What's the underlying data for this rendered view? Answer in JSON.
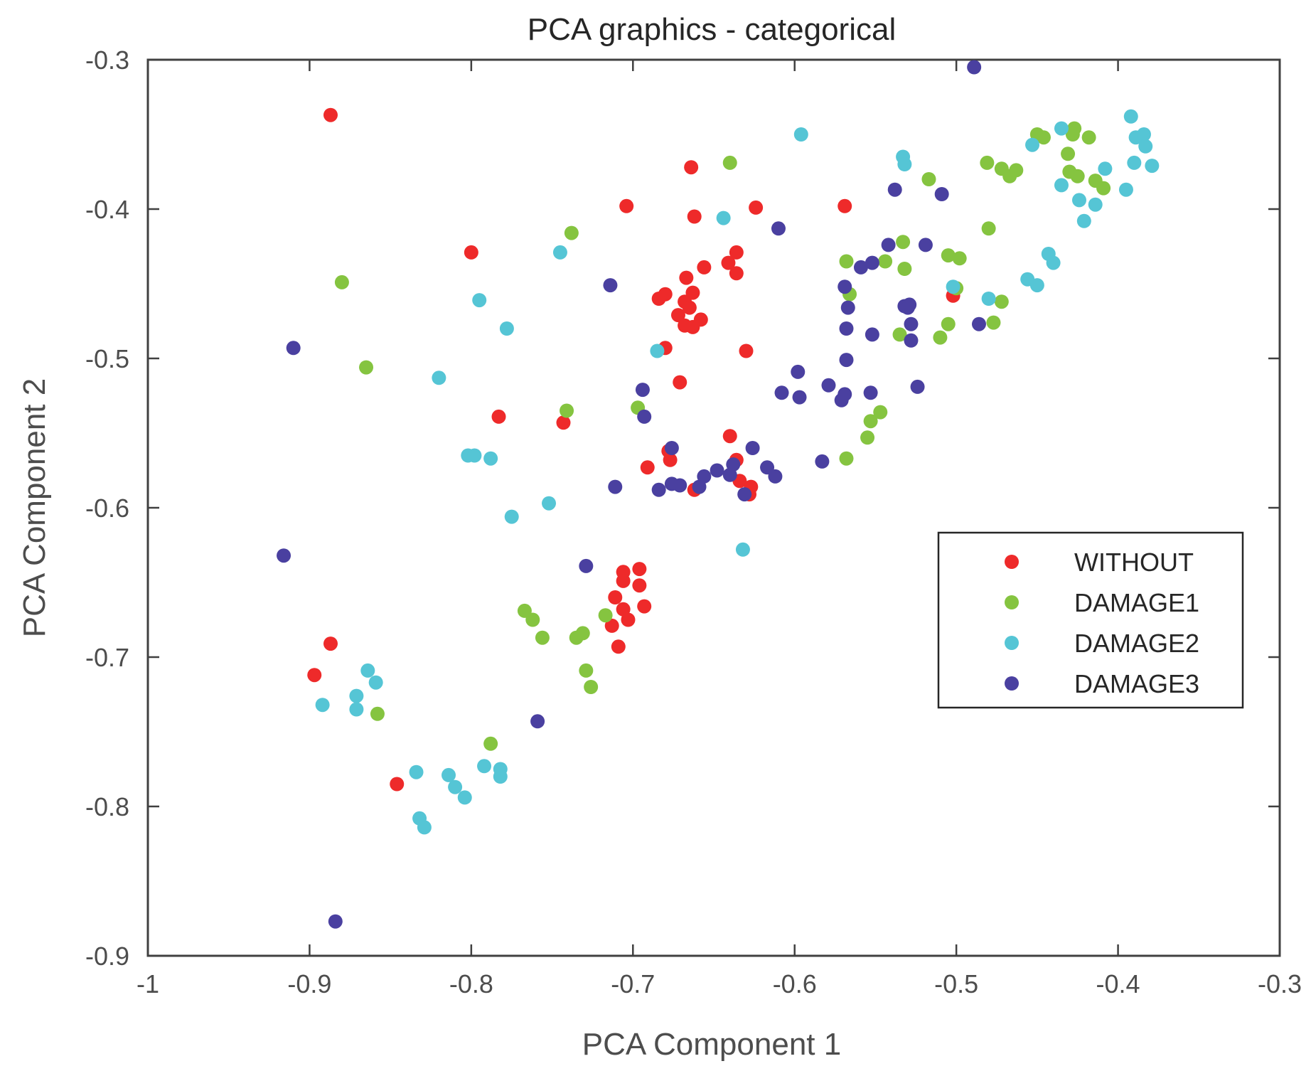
{
  "chart_data": {
    "type": "scatter",
    "title": "PCA graphics - categorical",
    "xlabel": "PCA Component 1",
    "ylabel": "PCA Component 2",
    "xlim": [
      -1,
      -0.3
    ],
    "ylim": [
      -0.9,
      -0.3
    ],
    "xticks": [
      -1,
      -0.9,
      -0.8,
      -0.7,
      -0.6,
      -0.5,
      -0.4,
      -0.3
    ],
    "xtick_labels": [
      "-1",
      "-0.9",
      "-0.8",
      "-0.7",
      "-0.6",
      "-0.5",
      "-0.4",
      "-0.3"
    ],
    "yticks": [
      -0.3,
      -0.4,
      -0.5,
      -0.6,
      -0.7,
      -0.8,
      -0.9
    ],
    "ytick_labels": [
      "-0.3",
      "-0.4",
      "-0.5",
      "-0.6",
      "-0.7",
      "-0.8",
      "-0.9"
    ],
    "grid": false,
    "legend_position": "right",
    "series": [
      {
        "name": "WITHOUT",
        "color": "#ee2a2a",
        "points": [
          [
            -0.887,
            -0.337
          ],
          [
            -0.664,
            -0.372
          ],
          [
            -0.704,
            -0.398
          ],
          [
            -0.662,
            -0.405
          ],
          [
            -0.624,
            -0.399
          ],
          [
            -0.569,
            -0.398
          ],
          [
            -0.8,
            -0.429
          ],
          [
            -0.636,
            -0.429
          ],
          [
            -0.641,
            -0.436
          ],
          [
            -0.656,
            -0.439
          ],
          [
            -0.636,
            -0.443
          ],
          [
            -0.667,
            -0.446
          ],
          [
            -0.663,
            -0.456
          ],
          [
            -0.68,
            -0.457
          ],
          [
            -0.684,
            -0.46
          ],
          [
            -0.668,
            -0.462
          ],
          [
            -0.665,
            -0.466
          ],
          [
            -0.672,
            -0.471
          ],
          [
            -0.658,
            -0.474
          ],
          [
            -0.668,
            -0.478
          ],
          [
            -0.663,
            -0.479
          ],
          [
            -0.68,
            -0.493
          ],
          [
            -0.63,
            -0.495
          ],
          [
            -0.671,
            -0.516
          ],
          [
            -0.783,
            -0.539
          ],
          [
            -0.743,
            -0.543
          ],
          [
            -0.64,
            -0.552
          ],
          [
            -0.678,
            -0.562
          ],
          [
            -0.677,
            -0.568
          ],
          [
            -0.691,
            -0.573
          ],
          [
            -0.636,
            -0.568
          ],
          [
            -0.634,
            -0.582
          ],
          [
            -0.627,
            -0.586
          ],
          [
            -0.662,
            -0.588
          ],
          [
            -0.628,
            -0.591
          ],
          [
            -0.696,
            -0.641
          ],
          [
            -0.706,
            -0.643
          ],
          [
            -0.706,
            -0.649
          ],
          [
            -0.696,
            -0.652
          ],
          [
            -0.711,
            -0.66
          ],
          [
            -0.706,
            -0.668
          ],
          [
            -0.693,
            -0.666
          ],
          [
            -0.703,
            -0.675
          ],
          [
            -0.713,
            -0.679
          ],
          [
            -0.709,
            -0.693
          ],
          [
            -0.887,
            -0.691
          ],
          [
            -0.897,
            -0.712
          ],
          [
            -0.846,
            -0.785
          ],
          [
            -0.502,
            -0.458
          ]
        ]
      },
      {
        "name": "DAMAGE1",
        "color": "#85c440",
        "points": [
          [
            -0.64,
            -0.369
          ],
          [
            -0.738,
            -0.416
          ],
          [
            -0.88,
            -0.449
          ],
          [
            -0.865,
            -0.506
          ],
          [
            -0.741,
            -0.535
          ],
          [
            -0.697,
            -0.533
          ],
          [
            -0.767,
            -0.669
          ],
          [
            -0.762,
            -0.675
          ],
          [
            -0.756,
            -0.687
          ],
          [
            -0.735,
            -0.687
          ],
          [
            -0.731,
            -0.684
          ],
          [
            -0.717,
            -0.672
          ],
          [
            -0.729,
            -0.709
          ],
          [
            -0.726,
            -0.72
          ],
          [
            -0.858,
            -0.738
          ],
          [
            -0.788,
            -0.758
          ],
          [
            -0.568,
            -0.435
          ],
          [
            -0.566,
            -0.457
          ],
          [
            -0.533,
            -0.422
          ],
          [
            -0.532,
            -0.44
          ],
          [
            -0.544,
            -0.435
          ],
          [
            -0.535,
            -0.484
          ],
          [
            -0.517,
            -0.38
          ],
          [
            -0.505,
            -0.431
          ],
          [
            -0.498,
            -0.433
          ],
          [
            -0.5,
            -0.453
          ],
          [
            -0.505,
            -0.477
          ],
          [
            -0.51,
            -0.486
          ],
          [
            -0.547,
            -0.536
          ],
          [
            -0.553,
            -0.542
          ],
          [
            -0.555,
            -0.553
          ],
          [
            -0.568,
            -0.567
          ],
          [
            -0.481,
            -0.369
          ],
          [
            -0.48,
            -0.413
          ],
          [
            -0.472,
            -0.373
          ],
          [
            -0.467,
            -0.378
          ],
          [
            -0.463,
            -0.374
          ],
          [
            -0.45,
            -0.35
          ],
          [
            -0.446,
            -0.352
          ],
          [
            -0.427,
            -0.346
          ],
          [
            -0.428,
            -0.35
          ],
          [
            -0.431,
            -0.363
          ],
          [
            -0.43,
            -0.375
          ],
          [
            -0.425,
            -0.378
          ],
          [
            -0.418,
            -0.352
          ],
          [
            -0.414,
            -0.381
          ],
          [
            -0.409,
            -0.386
          ],
          [
            -0.472,
            -0.462
          ],
          [
            -0.477,
            -0.476
          ]
        ]
      },
      {
        "name": "DAMAGE2",
        "color": "#55c5d5",
        "points": [
          [
            -0.596,
            -0.35
          ],
          [
            -0.644,
            -0.406
          ],
          [
            -0.745,
            -0.429
          ],
          [
            -0.795,
            -0.461
          ],
          [
            -0.778,
            -0.48
          ],
          [
            -0.685,
            -0.495
          ],
          [
            -0.82,
            -0.513
          ],
          [
            -0.802,
            -0.565
          ],
          [
            -0.798,
            -0.565
          ],
          [
            -0.788,
            -0.567
          ],
          [
            -0.752,
            -0.597
          ],
          [
            -0.775,
            -0.606
          ],
          [
            -0.632,
            -0.628
          ],
          [
            -0.864,
            -0.709
          ],
          [
            -0.859,
            -0.717
          ],
          [
            -0.871,
            -0.726
          ],
          [
            -0.871,
            -0.735
          ],
          [
            -0.892,
            -0.732
          ],
          [
            -0.834,
            -0.777
          ],
          [
            -0.814,
            -0.779
          ],
          [
            -0.81,
            -0.787
          ],
          [
            -0.804,
            -0.794
          ],
          [
            -0.792,
            -0.773
          ],
          [
            -0.782,
            -0.775
          ],
          [
            -0.782,
            -0.78
          ],
          [
            -0.832,
            -0.808
          ],
          [
            -0.829,
            -0.814
          ],
          [
            -0.533,
            -0.365
          ],
          [
            -0.532,
            -0.37
          ],
          [
            -0.502,
            -0.452
          ],
          [
            -0.48,
            -0.46
          ],
          [
            -0.456,
            -0.447
          ],
          [
            -0.45,
            -0.451
          ],
          [
            -0.443,
            -0.43
          ],
          [
            -0.44,
            -0.436
          ],
          [
            -0.453,
            -0.357
          ],
          [
            -0.435,
            -0.346
          ],
          [
            -0.435,
            -0.384
          ],
          [
            -0.424,
            -0.394
          ],
          [
            -0.421,
            -0.408
          ],
          [
            -0.414,
            -0.397
          ],
          [
            -0.408,
            -0.373
          ],
          [
            -0.392,
            -0.338
          ],
          [
            -0.39,
            -0.369
          ],
          [
            -0.389,
            -0.352
          ],
          [
            -0.384,
            -0.35
          ],
          [
            -0.383,
            -0.358
          ],
          [
            -0.379,
            -0.371
          ],
          [
            -0.395,
            -0.387
          ]
        ]
      },
      {
        "name": "DAMAGE3",
        "color": "#4a40a0",
        "points": [
          [
            -0.489,
            -0.305
          ],
          [
            -0.91,
            -0.493
          ],
          [
            -0.916,
            -0.632
          ],
          [
            -0.884,
            -0.877
          ],
          [
            -0.759,
            -0.743
          ],
          [
            -0.729,
            -0.639
          ],
          [
            -0.714,
            -0.451
          ],
          [
            -0.694,
            -0.521
          ],
          [
            -0.693,
            -0.539
          ],
          [
            -0.711,
            -0.586
          ],
          [
            -0.676,
            -0.56
          ],
          [
            -0.684,
            -0.588
          ],
          [
            -0.676,
            -0.584
          ],
          [
            -0.671,
            -0.585
          ],
          [
            -0.656,
            -0.579
          ],
          [
            -0.659,
            -0.586
          ],
          [
            -0.648,
            -0.575
          ],
          [
            -0.638,
            -0.571
          ],
          [
            -0.64,
            -0.578
          ],
          [
            -0.631,
            -0.591
          ],
          [
            -0.626,
            -0.56
          ],
          [
            -0.617,
            -0.573
          ],
          [
            -0.612,
            -0.579
          ],
          [
            -0.61,
            -0.413
          ],
          [
            -0.608,
            -0.523
          ],
          [
            -0.598,
            -0.509
          ],
          [
            -0.597,
            -0.526
          ],
          [
            -0.583,
            -0.569
          ],
          [
            -0.579,
            -0.518
          ],
          [
            -0.571,
            -0.528
          ],
          [
            -0.569,
            -0.524
          ],
          [
            -0.569,
            -0.452
          ],
          [
            -0.568,
            -0.48
          ],
          [
            -0.568,
            -0.501
          ],
          [
            -0.567,
            -0.466
          ],
          [
            -0.559,
            -0.439
          ],
          [
            -0.552,
            -0.436
          ],
          [
            -0.552,
            -0.484
          ],
          [
            -0.553,
            -0.523
          ],
          [
            -0.542,
            -0.424
          ],
          [
            -0.538,
            -0.387
          ],
          [
            -0.532,
            -0.465
          ],
          [
            -0.53,
            -0.466
          ],
          [
            -0.528,
            -0.477
          ],
          [
            -0.528,
            -0.488
          ],
          [
            -0.529,
            -0.464
          ],
          [
            -0.524,
            -0.519
          ],
          [
            -0.519,
            -0.424
          ],
          [
            -0.509,
            -0.39
          ],
          [
            -0.486,
            -0.477
          ]
        ]
      }
    ]
  }
}
